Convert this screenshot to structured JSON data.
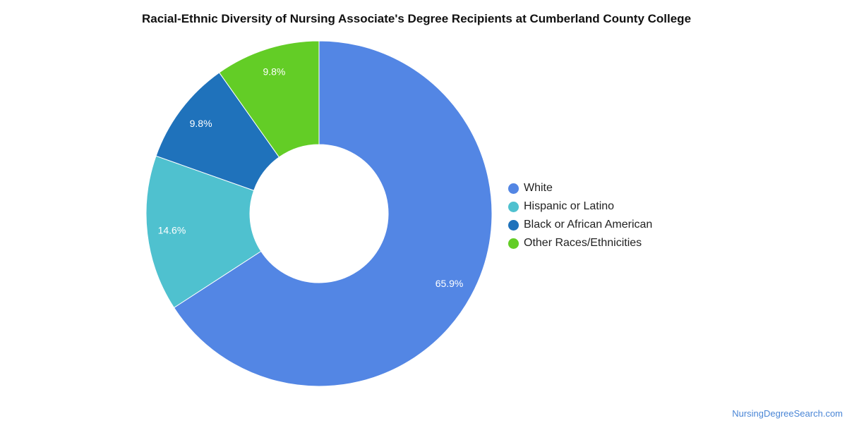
{
  "title": "Racial-Ethnic Diversity of Nursing Associate's Degree Recipients at Cumberland County College",
  "credit": "NursingDegreeSearch.com",
  "chart_data": {
    "type": "pie",
    "subtype": "donut",
    "title": "Racial-Ethnic Diversity of Nursing Associate's Degree Recipients at Cumberland County College",
    "categories": [
      "White",
      "Hispanic or Latino",
      "Black or African American",
      "Other Races/Ethnicities"
    ],
    "values": [
      65.9,
      14.6,
      9.8,
      9.8
    ],
    "value_labels": [
      "65.9%",
      "14.6%",
      "9.8%",
      "9.8%"
    ],
    "colors": [
      "#5386e4",
      "#4fc1cf",
      "#1f72bb",
      "#63cd26"
    ],
    "legend_position": "right"
  }
}
